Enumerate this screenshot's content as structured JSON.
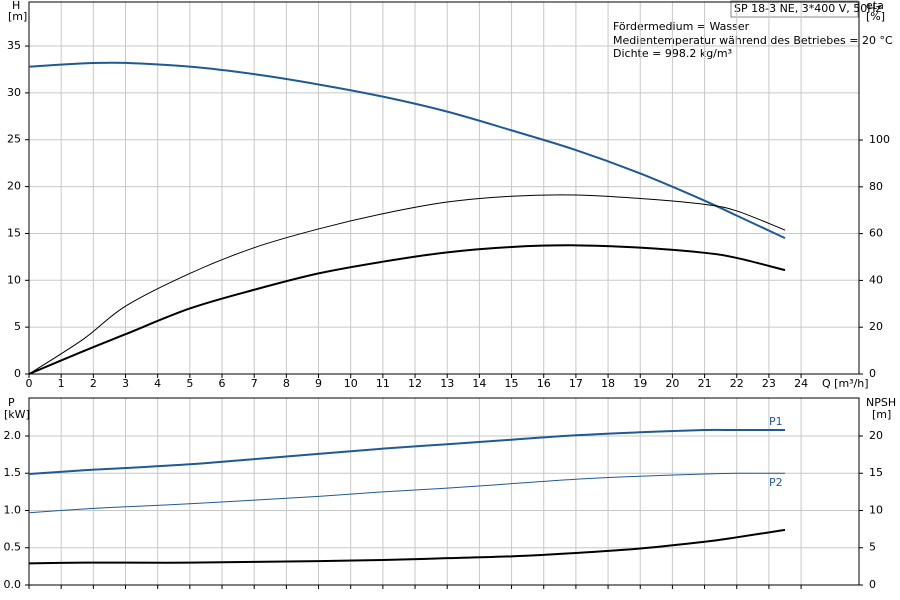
{
  "chart_data": [
    {
      "type": "line",
      "box_title": "SP 18-3 NE, 3*400 V, 50Hz",
      "annotations": [
        "Fördermedium = Wasser",
        "Medientemperatur während des Betriebes = 20 °C",
        "Dichte = 998.2 kg/m³"
      ],
      "ylabel": "H",
      "yunit": "[m]",
      "y2label": "eta",
      "y2unit": "[%]",
      "xlabel": "Q [m³/h]",
      "xlim": [
        0,
        25.8
      ],
      "xticks": [
        0,
        1,
        2,
        3,
        4,
        5,
        6,
        7,
        8,
        9,
        10,
        11,
        12,
        13,
        14,
        15,
        16,
        17,
        18,
        19,
        20,
        21,
        22,
        23,
        24
      ],
      "ylim": [
        0,
        39.7
      ],
      "yticks": [
        0,
        5,
        10,
        15,
        20,
        25,
        30,
        35
      ],
      "y2lim": [
        0,
        159
      ],
      "y2ticks": [
        0,
        20,
        40,
        60,
        80,
        100
      ],
      "grid": true,
      "series": [
        {
          "color": "#1f5a96",
          "linewidth": 2,
          "x": [
            0,
            1.7,
            3,
            5,
            7,
            9,
            11,
            13,
            15,
            17,
            19,
            21,
            22,
            23.5
          ],
          "values": [
            32.8,
            33.15,
            33.2,
            32.8,
            32.0,
            30.9,
            29.6,
            28.0,
            26.0,
            23.9,
            21.4,
            18.5,
            16.9,
            14.5
          ]
        },
        {
          "color": "#000000",
          "linewidth": 1,
          "axis": "y2",
          "x": [
            0,
            1.7,
            3,
            5,
            7,
            9,
            11,
            13,
            15,
            17,
            19,
            21,
            22,
            23.5
          ],
          "values": [
            0,
            15,
            29,
            43,
            54,
            62,
            68.5,
            73.5,
            76,
            76.5,
            75,
            72.5,
            69.7,
            61.5
          ]
        },
        {
          "color": "#000000",
          "linewidth": 2,
          "axis": "y2",
          "x": [
            0,
            1.7,
            3,
            5,
            7,
            9,
            11,
            13,
            15,
            17,
            19,
            21,
            22,
            23.5
          ],
          "values": [
            0,
            9.8,
            17,
            28,
            36,
            43,
            48,
            52,
            54.3,
            55,
            54,
            51.8,
            49.6,
            44.4
          ]
        }
      ]
    },
    {
      "type": "line",
      "ylabel": "P",
      "yunit": "[kW]",
      "y2label": "NPSH",
      "y2unit": "[m]",
      "xlim": [
        0,
        25.8
      ],
      "ylim": [
        0,
        2.51
      ],
      "yticks": [
        {
          "value": 0,
          "label": "0.0"
        },
        {
          "value": 0.5,
          "label": "0.5"
        },
        {
          "value": 1,
          "label": "1.0"
        },
        {
          "value": 1.5,
          "label": "1.5"
        },
        {
          "value": 2,
          "label": "2.0"
        }
      ],
      "y2lim": [
        0,
        25.1
      ],
      "y2ticks": [
        0,
        5,
        10,
        15,
        20
      ],
      "grid": true,
      "series": [
        {
          "name": "P1",
          "color": "#1f5a96",
          "linewidth": 2,
          "x": [
            0,
            1.7,
            3,
            5,
            7,
            9,
            11,
            13,
            15,
            17,
            19,
            21,
            22,
            23.5
          ],
          "values": [
            1.49,
            1.54,
            1.57,
            1.62,
            1.69,
            1.76,
            1.83,
            1.89,
            1.95,
            2.01,
            2.05,
            2.08,
            2.08,
            2.08
          ]
        },
        {
          "name": "P2",
          "color": "#1f5a96",
          "linewidth": 1,
          "x": [
            0,
            1.7,
            3,
            5,
            7,
            9,
            11,
            13,
            15,
            17,
            19,
            21,
            22,
            23.5
          ],
          "values": [
            0.97,
            1.02,
            1.05,
            1.09,
            1.14,
            1.19,
            1.25,
            1.3,
            1.36,
            1.42,
            1.46,
            1.49,
            1.5,
            1.5
          ]
        },
        {
          "color": "#000000",
          "linewidth": 2,
          "axis": "y2",
          "x": [
            0,
            1.7,
            3,
            5,
            7,
            9,
            11,
            13,
            15,
            17,
            19,
            21,
            22,
            23.5
          ],
          "values": [
            2.9,
            3.0,
            3.0,
            3.0,
            3.1,
            3.2,
            3.35,
            3.6,
            3.85,
            4.3,
            4.9,
            5.8,
            6.4,
            7.4
          ]
        }
      ]
    }
  ]
}
